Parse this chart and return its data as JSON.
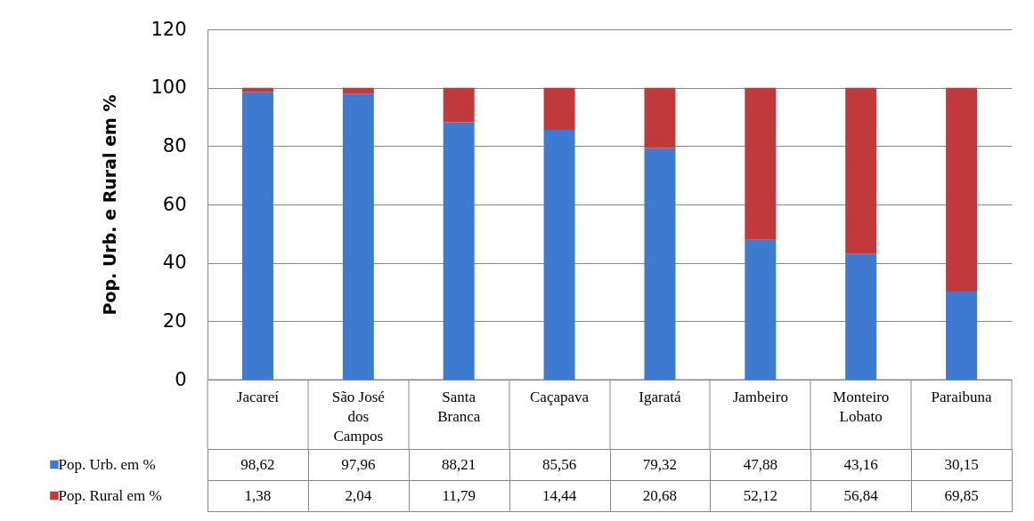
{
  "chart_data": {
    "type": "bar",
    "ylabel": "Pop. Urb. e Rural em %",
    "stacked": true,
    "grid": "y",
    "legend": "bottom",
    "categories": [
      "Jacareí",
      "São José dos Campos",
      "Santa Branca",
      "Caçapava",
      "Igaratá",
      "Jambeiro",
      "Monteiro Lobato",
      "Paraibuna"
    ],
    "ylim": [
      0,
      120
    ],
    "yticks": [
      0,
      20,
      40,
      60,
      80,
      100,
      120
    ],
    "series": [
      {
        "name": "Pop. Urb. em %",
        "color": "#3d7ad0",
        "values": [
          98.62,
          97.96,
          88.21,
          85.56,
          79.32,
          47.88,
          43.16,
          30.15
        ],
        "value_labels": [
          "98,62",
          "97,96",
          "88,21",
          "85,56",
          "79,32",
          "47,88",
          "43,16",
          "30,15"
        ]
      },
      {
        "name": "Pop. Rural em %",
        "color": "#c0393b",
        "values": [
          1.38,
          2.04,
          11.79,
          14.44,
          20.68,
          52.12,
          56.84,
          69.85
        ],
        "value_labels": [
          "1,38",
          "2,04",
          "11,79",
          "14,44",
          "20,68",
          "52,12",
          "56,84",
          "69,85"
        ]
      }
    ]
  }
}
